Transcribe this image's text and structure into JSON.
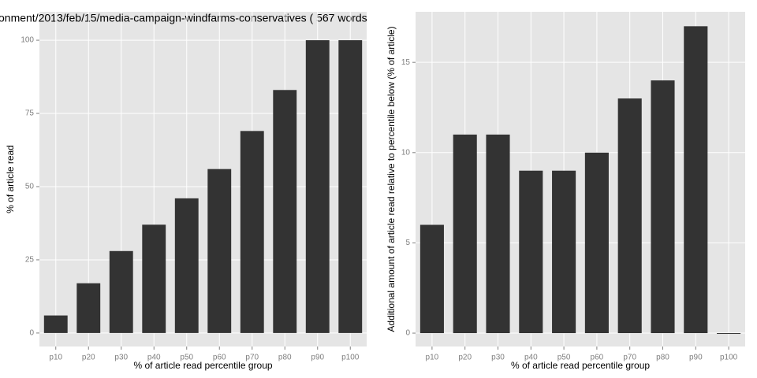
{
  "chart_data": [
    {
      "type": "bar",
      "title": "onment/2013/feb/15/media-campaign-windfarms-conservatives ( 567 words",
      "x_label": "% of article read percentile group",
      "y_label": "% of article read",
      "categories": [
        "p10",
        "p20",
        "p30",
        "p40",
        "p50",
        "p60",
        "p70",
        "p80",
        "p90",
        "p100"
      ],
      "values": [
        6,
        17,
        28,
        37,
        46,
        56,
        69,
        83,
        100,
        100
      ],
      "color": "#333333",
      "ylim": [
        -4.6,
        109.7
      ],
      "yticks": [
        0,
        25,
        50,
        75,
        100
      ],
      "grid": true
    },
    {
      "type": "bar",
      "x_label": "% of article read percentile group",
      "y_label": "Additional amount of article read relative to percentile below (% of article)",
      "categories": [
        "p10",
        "p20",
        "p30",
        "p40",
        "p50",
        "p60",
        "p70",
        "p80",
        "p90",
        "p100"
      ],
      "values": [
        6,
        11,
        11,
        9,
        9,
        10,
        13,
        14,
        17,
        0
      ],
      "color": "#333333",
      "ylim": [
        -0.74,
        17.8
      ],
      "yticks": [
        0,
        5,
        10,
        15
      ],
      "grid": true
    }
  ]
}
